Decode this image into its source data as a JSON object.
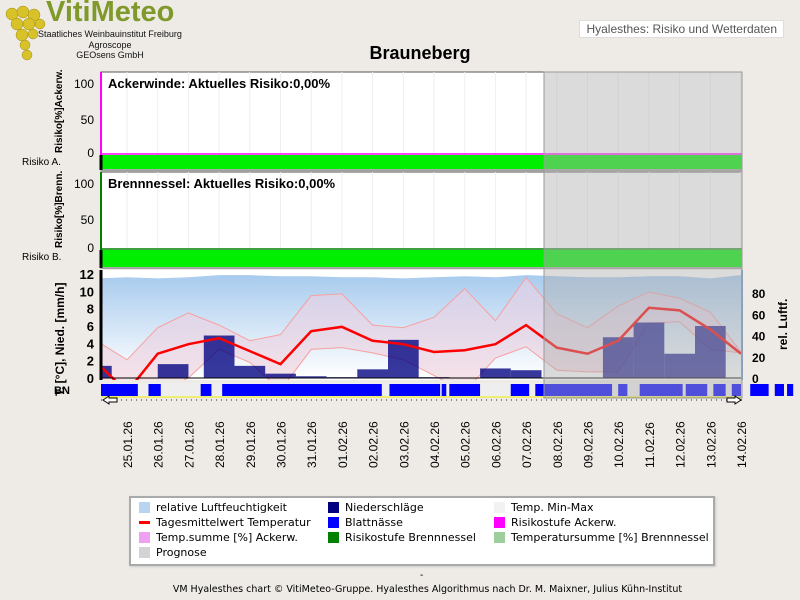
{
  "header": {
    "logo": "VitiMeteo",
    "institutes": [
      "Staatliches Weinbauinstitut Freiburg",
      "Agroscope",
      "GEOsens GmbH"
    ],
    "right_label": "Hyalesthes: Risiko und Wetterdaten"
  },
  "chart_data": {
    "type": "line",
    "title": "Brauneberg",
    "dates": [
      "25.01.26",
      "26.01.26",
      "27.01.26",
      "28.01.26",
      "29.01.26",
      "30.01.26",
      "31.01.26",
      "01.02.26",
      "02.02.26",
      "03.02.26",
      "04.02.26",
      "05.02.26",
      "06.02.26",
      "07.02.26",
      "08.02.26",
      "09.02.26",
      "10.02.26",
      "11.02.26",
      "12.02.26",
      "13.02.26",
      "14.02.26"
    ],
    "prognosis_from": "07.02.26 12:00",
    "panels": [
      {
        "title": "Ackerwinde: Aktuelles Risiko:0,00%",
        "ylabel": "Risiko[%]Ackerw.",
        "risk_label": "Risiko A.",
        "yticks": [
          "100",
          "50",
          "0"
        ],
        "ylim": [
          0,
          100
        ],
        "risk_level_color": "#00ee00",
        "risk_sum_color": "#ff00ff",
        "risk_values": 0
      },
      {
        "title": "Brennnessel: Aktuelles Risiko:0,00%",
        "ylabel": "Risiko[%]Brenn.",
        "risk_label": "Risiko B.",
        "yticks": [
          "100",
          "50",
          "0"
        ],
        "ylim": [
          0,
          100
        ],
        "risk_level_color": "#00ee00",
        "risk_sum_color": "#008000",
        "risk_values": 0
      }
    ],
    "weather": {
      "ylabel_left": "T. [°C], Nied. [mm/h]",
      "ylabel_right": "rel. Luftf.",
      "bn_label": "BN",
      "yticks_left": [
        "0",
        "2",
        "4",
        "6",
        "8",
        "10",
        "12"
      ],
      "ylim_left": [
        -1.5,
        12
      ],
      "yticks_right": [
        "0",
        "20",
        "40",
        "60",
        "80"
      ],
      "ylim_right": [
        0,
        100
      ],
      "x_days": [
        -1,
        0,
        1,
        2,
        3,
        4,
        5,
        6,
        7,
        8,
        9,
        10,
        11,
        12,
        13,
        14,
        15,
        16,
        17,
        18,
        19,
        20
      ],
      "temp_mean": [
        1.8,
        -1.6,
        2.8,
        3.9,
        4.6,
        3.1,
        1.6,
        5.4,
        5.9,
        4.3,
        3.9,
        3.0,
        3.2,
        3.9,
        6.1,
        3.5,
        2.8,
        4.3,
        8.1,
        7.8,
        5.6,
        2.8
      ],
      "temp_max": [
        4.3,
        2.1,
        5.8,
        7.5,
        6.1,
        4.3,
        5.0,
        9.5,
        9.7,
        6.1,
        5.8,
        7.0,
        10.3,
        6.6,
        11.6,
        7.4,
        5.8,
        8.3,
        9.9,
        9.2,
        7.6,
        3.0
      ],
      "temp_min": [
        -3,
        -3,
        -1.7,
        0,
        3.3,
        1.8,
        -1.4,
        3.3,
        3.5,
        2.9,
        2.1,
        0.3,
        -1.6,
        2.3,
        3.6,
        0.9,
        0.7,
        0.7,
        6.3,
        6.5,
        3.3,
        2.9
      ],
      "humidity": [
        94,
        95,
        94,
        95,
        97,
        97,
        96,
        96,
        95,
        95,
        94,
        95,
        96,
        95,
        97,
        96,
        95,
        95,
        96,
        96,
        94,
        97
      ],
      "precip": [
        [
          -1,
          1.4
        ],
        [
          1.5,
          1.6
        ],
        [
          3,
          4.9
        ],
        [
          4,
          1.4
        ],
        [
          5,
          0.5
        ],
        [
          6,
          0.2
        ],
        [
          7,
          0.1
        ],
        [
          8,
          1.0
        ],
        [
          9,
          4.4
        ],
        [
          10,
          0.1
        ],
        [
          12,
          1.1
        ],
        [
          13,
          0.9
        ],
        [
          16,
          4.7
        ],
        [
          17,
          6.4
        ],
        [
          18,
          2.8
        ],
        [
          19,
          6.0
        ]
      ],
      "leaf_wetness": [
        [
          -1.2,
          -0.3
        ],
        [
          0.1,
          1.3
        ],
        [
          1.7,
          2.1
        ],
        [
          3.4,
          3.75
        ],
        [
          4.1,
          9.3
        ],
        [
          9.55,
          11.2
        ],
        [
          11.25,
          11.4
        ],
        [
          11.5,
          12.5
        ],
        [
          13.5,
          14.1
        ],
        [
          14.3,
          16.8
        ],
        [
          17.0,
          17.3
        ],
        [
          17.7,
          19.1
        ],
        [
          19.2,
          19.9
        ],
        [
          20.1,
          20.5
        ],
        [
          20.7,
          21.0
        ],
        [
          21.3,
          21.9
        ],
        [
          22.1,
          22.4
        ],
        [
          22.5,
          22.7
        ],
        [
          23.0,
          23.3
        ]
      ]
    },
    "legend": [
      {
        "label": "relative Luftfeuchtigkeit",
        "color": "#b8d4f0"
      },
      {
        "label": "Niederschläge",
        "color": "#000080"
      },
      {
        "label": "Temp. Min-Max",
        "color": "#f2f2f2"
      },
      {
        "label": "Tagesmittelwert Temperatur",
        "color": "#ff0000"
      },
      {
        "label": "Blattnässe",
        "color": "#0000ff"
      },
      {
        "label": "Risikostufe Ackerw.",
        "color": "#ff00ff"
      },
      {
        "label": "Temp.summe [%] Ackerw.",
        "color": "#f0a0f0"
      },
      {
        "label": "Risikostufe Brennnessel",
        "color": "#008000"
      },
      {
        "label": "Temperatursumme [%] Brennnessel",
        "color": "#9ccf9c"
      },
      {
        "label": "Prognose",
        "color": "#d3d3d3"
      }
    ]
  },
  "footer": {
    "dash": "-",
    "credit": "VM Hyalesthes chart © VitiMeteo-Gruppe. Hyalesthes Algorithmus nach Dr. M. Maixner, Julius Kühn-Institut"
  }
}
